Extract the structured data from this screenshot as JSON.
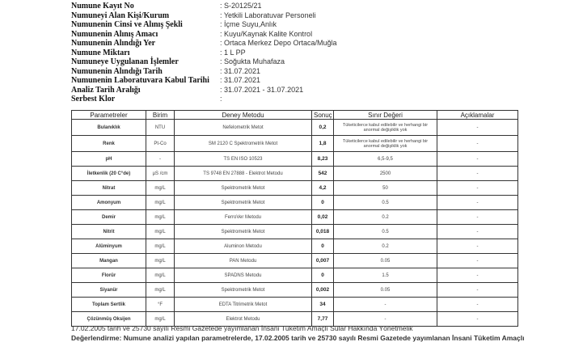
{
  "info": [
    {
      "label": "Numune Kayıt No",
      "value": ": S-20125/21"
    },
    {
      "label": "Numuneyi Alan Kişi/Kurum",
      "value": ": Yetkili Laboratuvar Personeli"
    },
    {
      "label": "Numunenin Cinsi ve Alınış Şekli",
      "value": ": İçme Suyu,Anlık"
    },
    {
      "label": "Numunenin Alınış Amacı",
      "value": ": Kuyu/Kaynak Kalite Kontrol"
    },
    {
      "label": "Numunenin Alındığı Yer",
      "value": ": Ortaca Merkez Depo Ortaca/Muğla"
    },
    {
      "label": "Numune Miktarı",
      "value": ": 1 L PP"
    },
    {
      "label": "Numuneye Uygulanan İşlemler",
      "value": ": Soğukta Muhafaza"
    },
    {
      "label": "Numunenin Alındığı Tarih",
      "value": ": 31.07.2021"
    },
    {
      "label": "Numunenin Laboratuvara Kabul Tarihi",
      "value": ": 31.07.2021"
    },
    {
      "label": "Analiz Tarih Aralığı",
      "value": ": 31.07.2021 - 31.07.2021"
    },
    {
      "label": "Serbest Klor",
      "value": ":"
    }
  ],
  "table": {
    "headers": [
      "Parametreler",
      "Birim",
      "Deney Metodu",
      "Sonuç",
      "Sınır Değeri",
      "Açıklamalar"
    ],
    "rows": [
      [
        "Bulanıklık",
        "NTU",
        "Nefelometrik Metot",
        "0,2",
        "Tüketicilerce kabul edilebilir ve herhangi bir anormal değişiklik yok",
        "-"
      ],
      [
        "Renk",
        "Pt-Co",
        "SM 2120 C Spektrometrik Metot",
        "1,8",
        "Tüketicilerce kabul edilebilir ve herhangi bir anormal değişiklik yok",
        "-"
      ],
      [
        "pH",
        "-",
        "TS EN ISO 10523",
        "8,23",
        "6,5-9,5",
        "-"
      ],
      [
        "İletkenlik (20 C°de)",
        "µS /cm",
        "TS 9748 EN 27888 - Elektrot Metodu",
        "542",
        "2500",
        "-"
      ],
      [
        "Nitrat",
        "mg/L",
        "Spektrometrik Metot",
        "4,2",
        "50",
        "-"
      ],
      [
        "Amonyum",
        "mg/L",
        "Spektrometrik Metot",
        "0",
        "0.5",
        "-"
      ],
      [
        "Demir",
        "mg/L",
        "FerroVer Metodu",
        "0,02",
        "0.2",
        "-"
      ],
      [
        "Nitrit",
        "mg/L",
        "Spektrometrik Metot",
        "0,018",
        "0.5",
        "-"
      ],
      [
        "Alüminyum",
        "mg/L",
        "Aluminon Metodu",
        "0",
        "0.2",
        "-"
      ],
      [
        "Mangan",
        "mg/L",
        "PAN Metodu",
        "0,007",
        "0.05",
        "-"
      ],
      [
        "Florür",
        "mg/L",
        "SPADNS Metodu",
        "0",
        "1.5",
        "-"
      ],
      [
        "Siyanür",
        "mg/L",
        "Spektrometrik Metot",
        "0,002",
        "0.05",
        "-"
      ],
      [
        "Toplam Sertlik",
        "°F",
        "EDTA Titrimetrik Metot",
        "34",
        "-",
        "-"
      ],
      [
        "Çözünmüş Oksijen",
        "mg/L",
        "Elektrot Metodu",
        "7,77",
        "-",
        "-"
      ]
    ]
  },
  "footer": "17.02.2005 tarih ve 25730 sayılı Resmi Gazetede yayımlanan İnsani Tüketim Amaçlı Sular Hakkında Yönetmelik",
  "evaluation": "Değerlendirme: Numune analizi yapılan parametrelerde, 17.02.2005 tarih ve 25730 sayılı Resmi Gazetede yayımlanan İnsani Tüketim Amaçlı"
}
